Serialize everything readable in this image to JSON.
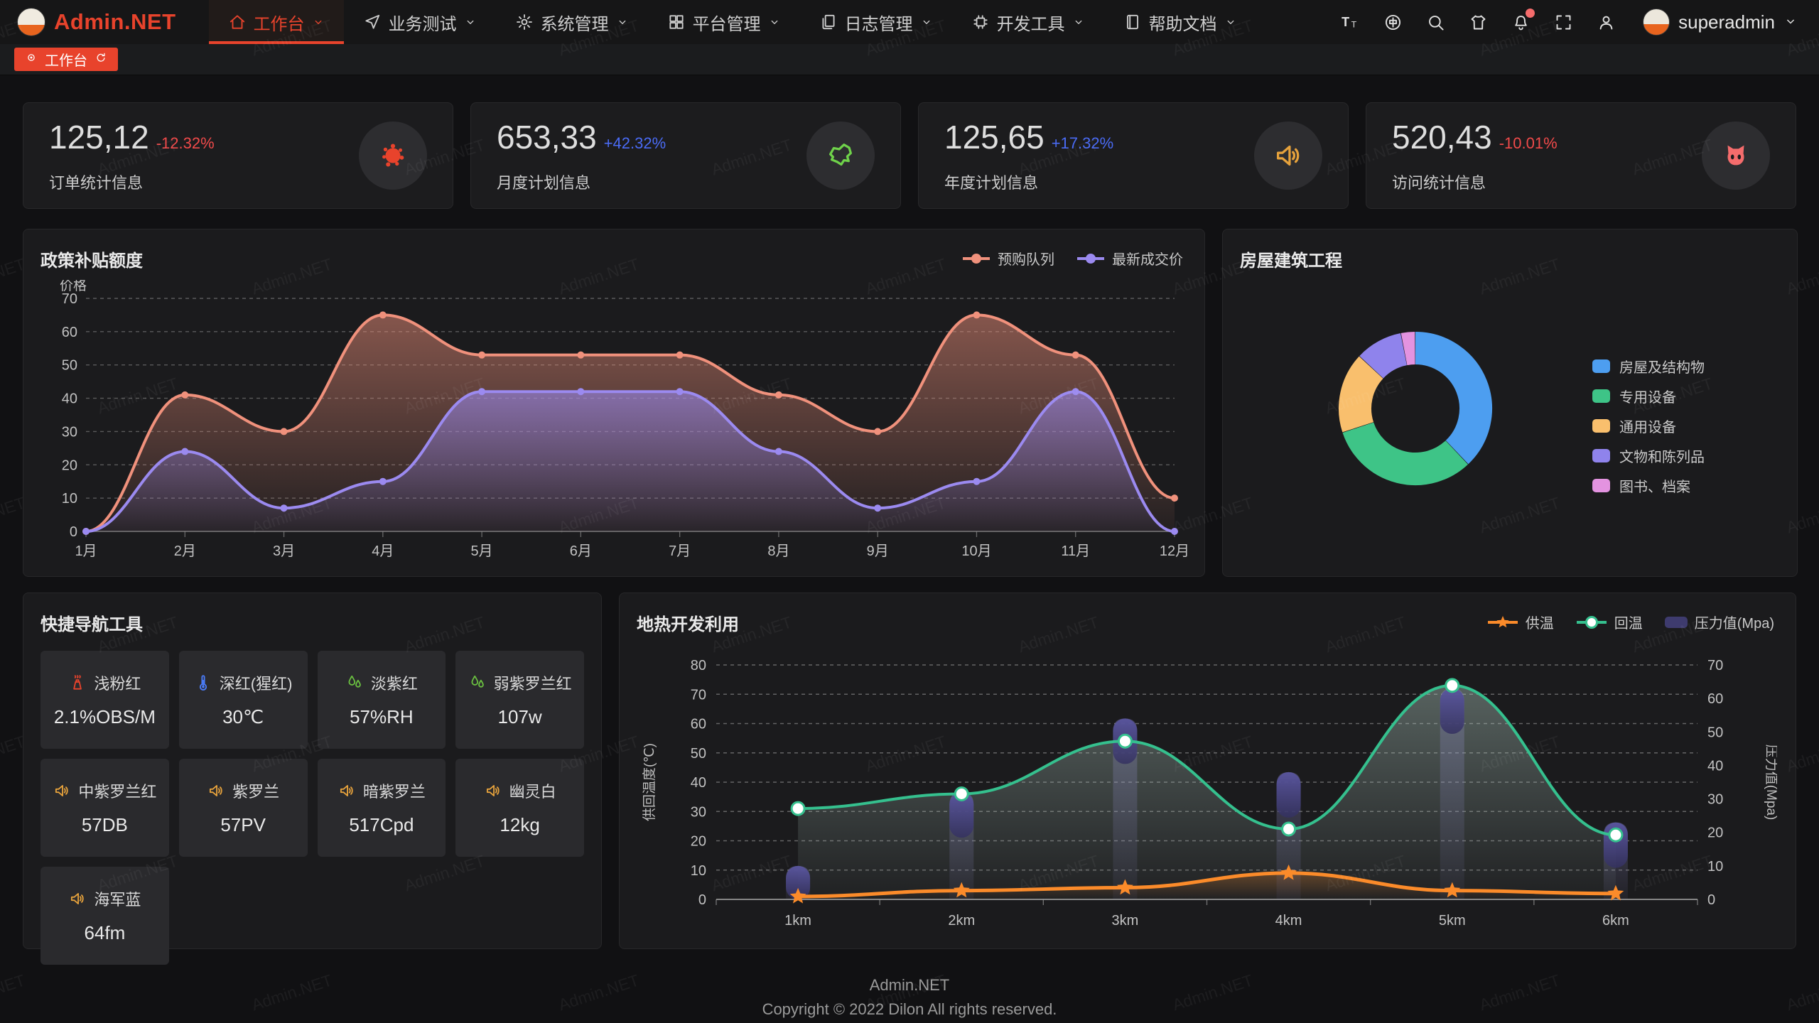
{
  "watermark": "Admin.NET",
  "accent_color": "#e8432c",
  "navbar": {
    "logo_text": "Admin.NET",
    "menu": [
      {
        "key": "workbench",
        "label": "工作台",
        "icon": "home-icon",
        "active": true
      },
      {
        "key": "business-test",
        "label": "业务测试",
        "icon": "navigation-icon",
        "active": false
      },
      {
        "key": "system",
        "label": "系统管理",
        "icon": "gear-icon",
        "active": false
      },
      {
        "key": "platform",
        "label": "平台管理",
        "icon": "grid-icon",
        "active": false
      },
      {
        "key": "logs",
        "label": "日志管理",
        "icon": "document-icon",
        "active": false
      },
      {
        "key": "devtools",
        "label": "开发工具",
        "icon": "chip-icon",
        "active": false
      },
      {
        "key": "docs",
        "label": "帮助文档",
        "icon": "book-icon",
        "active": false
      }
    ],
    "tools": [
      {
        "icon": "font-size-icon"
      },
      {
        "icon": "language-icon"
      },
      {
        "icon": "search-icon"
      },
      {
        "icon": "theme-icon"
      },
      {
        "icon": "bell-icon",
        "badge": true
      },
      {
        "icon": "fullscreen-icon"
      },
      {
        "icon": "user-icon"
      }
    ],
    "username": "superadmin"
  },
  "tabs": [
    {
      "label": "工作台",
      "active": true
    }
  ],
  "stat_cards": [
    {
      "value": "125,12",
      "delta": "-12.32%",
      "delta_color": "#f04a4a",
      "label": "订单统计信息",
      "icon": "paint-splat-icon",
      "icon_color": "#e8432c"
    },
    {
      "value": "653,33",
      "delta": "+42.32%",
      "delta_color": "#4a6bf5",
      "label": "月度计划信息",
      "icon": "china-map-icon",
      "icon_color": "#6fd24a"
    },
    {
      "value": "125,65",
      "delta": "+17.32%",
      "delta_color": "#4a6bf5",
      "label": "年度计划信息",
      "icon": "speaker-icon",
      "icon_color": "#e6a23c"
    },
    {
      "value": "520,43",
      "delta": "-10.01%",
      "delta_color": "#f04a4a",
      "label": "访问统计信息",
      "icon": "cat-icon",
      "icon_color": "#f56c6c"
    }
  ],
  "chart_data": [
    {
      "type": "area",
      "title": "政策补贴额度",
      "ylabel": "价格",
      "categories": [
        "1月",
        "2月",
        "3月",
        "4月",
        "5月",
        "6月",
        "7月",
        "8月",
        "9月",
        "10月",
        "11月",
        "12月"
      ],
      "ylim": [
        0,
        70
      ],
      "ytick_step": 10,
      "grid": "dashed",
      "legend_position": "top-right",
      "series": [
        {
          "name": "预购队列",
          "color": "#f0917c",
          "values": [
            0,
            41,
            30,
            65,
            53,
            53,
            53,
            41,
            30,
            65,
            53,
            10
          ]
        },
        {
          "name": "最新成交价",
          "color": "#9b8af0",
          "values": [
            0,
            24,
            7,
            15,
            42,
            42,
            42,
            24,
            7,
            15,
            42,
            0
          ]
        }
      ]
    },
    {
      "type": "pie",
      "title": "房屋建筑工程",
      "legend_position": "right",
      "donut": true,
      "series": [
        {
          "name": "房屋及结构物",
          "value": 38,
          "color": "#4d9ef0"
        },
        {
          "name": "专用设备",
          "value": 32,
          "color": "#3ec487"
        },
        {
          "name": "通用设备",
          "value": 17,
          "color": "#f9bf6d"
        },
        {
          "name": "文物和陈列品",
          "value": 10,
          "color": "#8f83ec"
        },
        {
          "name": "图书、档案",
          "value": 3,
          "color": "#e393e0"
        }
      ]
    },
    {
      "type": "combo",
      "title": "地热开发利用",
      "categories": [
        "1km",
        "2km",
        "3km",
        "4km",
        "5km",
        "6km"
      ],
      "ylabel_left": "供回温度(℃)",
      "ylim_left": [
        0,
        80
      ],
      "ylabel_right": "压力值(Mpa)",
      "ylim_right": [
        0,
        70
      ],
      "ytick_step": 10,
      "grid": "dashed",
      "legend_position": "top-right",
      "series": [
        {
          "name": "供温",
          "type": "line",
          "marker": "star",
          "axis": "left",
          "color": "#fb8b2a",
          "values": [
            1,
            3,
            4,
            9,
            3,
            2
          ]
        },
        {
          "name": "回温",
          "type": "line",
          "marker": "circle",
          "axis": "left",
          "color": "#35c08e",
          "values": [
            31,
            36,
            54,
            24,
            73,
            22
          ]
        },
        {
          "name": "压力值(Mpa)",
          "type": "bar",
          "axis": "right",
          "color": "#3e3b6e",
          "values": [
            10,
            32,
            54,
            38,
            63,
            23
          ]
        }
      ]
    }
  ],
  "quick_nav": {
    "title": "快捷导航工具",
    "items": [
      {
        "label": "浅粉红",
        "value": "2.1%OBS/M",
        "icon": "chimney-icon",
        "icon_color": "#e8432c"
      },
      {
        "label": "深红(猩红)",
        "value": "30℃",
        "icon": "thermometer-icon",
        "icon_color": "#4a7bf7"
      },
      {
        "label": "淡紫红",
        "value": "57%RH",
        "icon": "water-drops-icon",
        "icon_color": "#6abf40"
      },
      {
        "label": "弱紫罗兰红",
        "value": "107w",
        "icon": "water-drops-icon",
        "icon_color": "#6abf40"
      },
      {
        "label": "中紫罗兰红",
        "value": "57DB",
        "icon": "speaker-icon",
        "icon_color": "#e6a23c"
      },
      {
        "label": "紫罗兰",
        "value": "57PV",
        "icon": "speaker-icon",
        "icon_color": "#e6a23c"
      },
      {
        "label": "暗紫罗兰",
        "value": "517Cpd",
        "icon": "speaker-icon",
        "icon_color": "#e6a23c"
      },
      {
        "label": "幽灵白",
        "value": "12kg",
        "icon": "speaker-icon",
        "icon_color": "#e6a23c"
      },
      {
        "label": "海军蓝",
        "value": "64fm",
        "icon": "speaker-icon",
        "icon_color": "#e6a23c"
      }
    ]
  },
  "footer": {
    "line1": "Admin.NET",
    "line2": "Copyright © 2022 Dilon All rights reserved."
  }
}
